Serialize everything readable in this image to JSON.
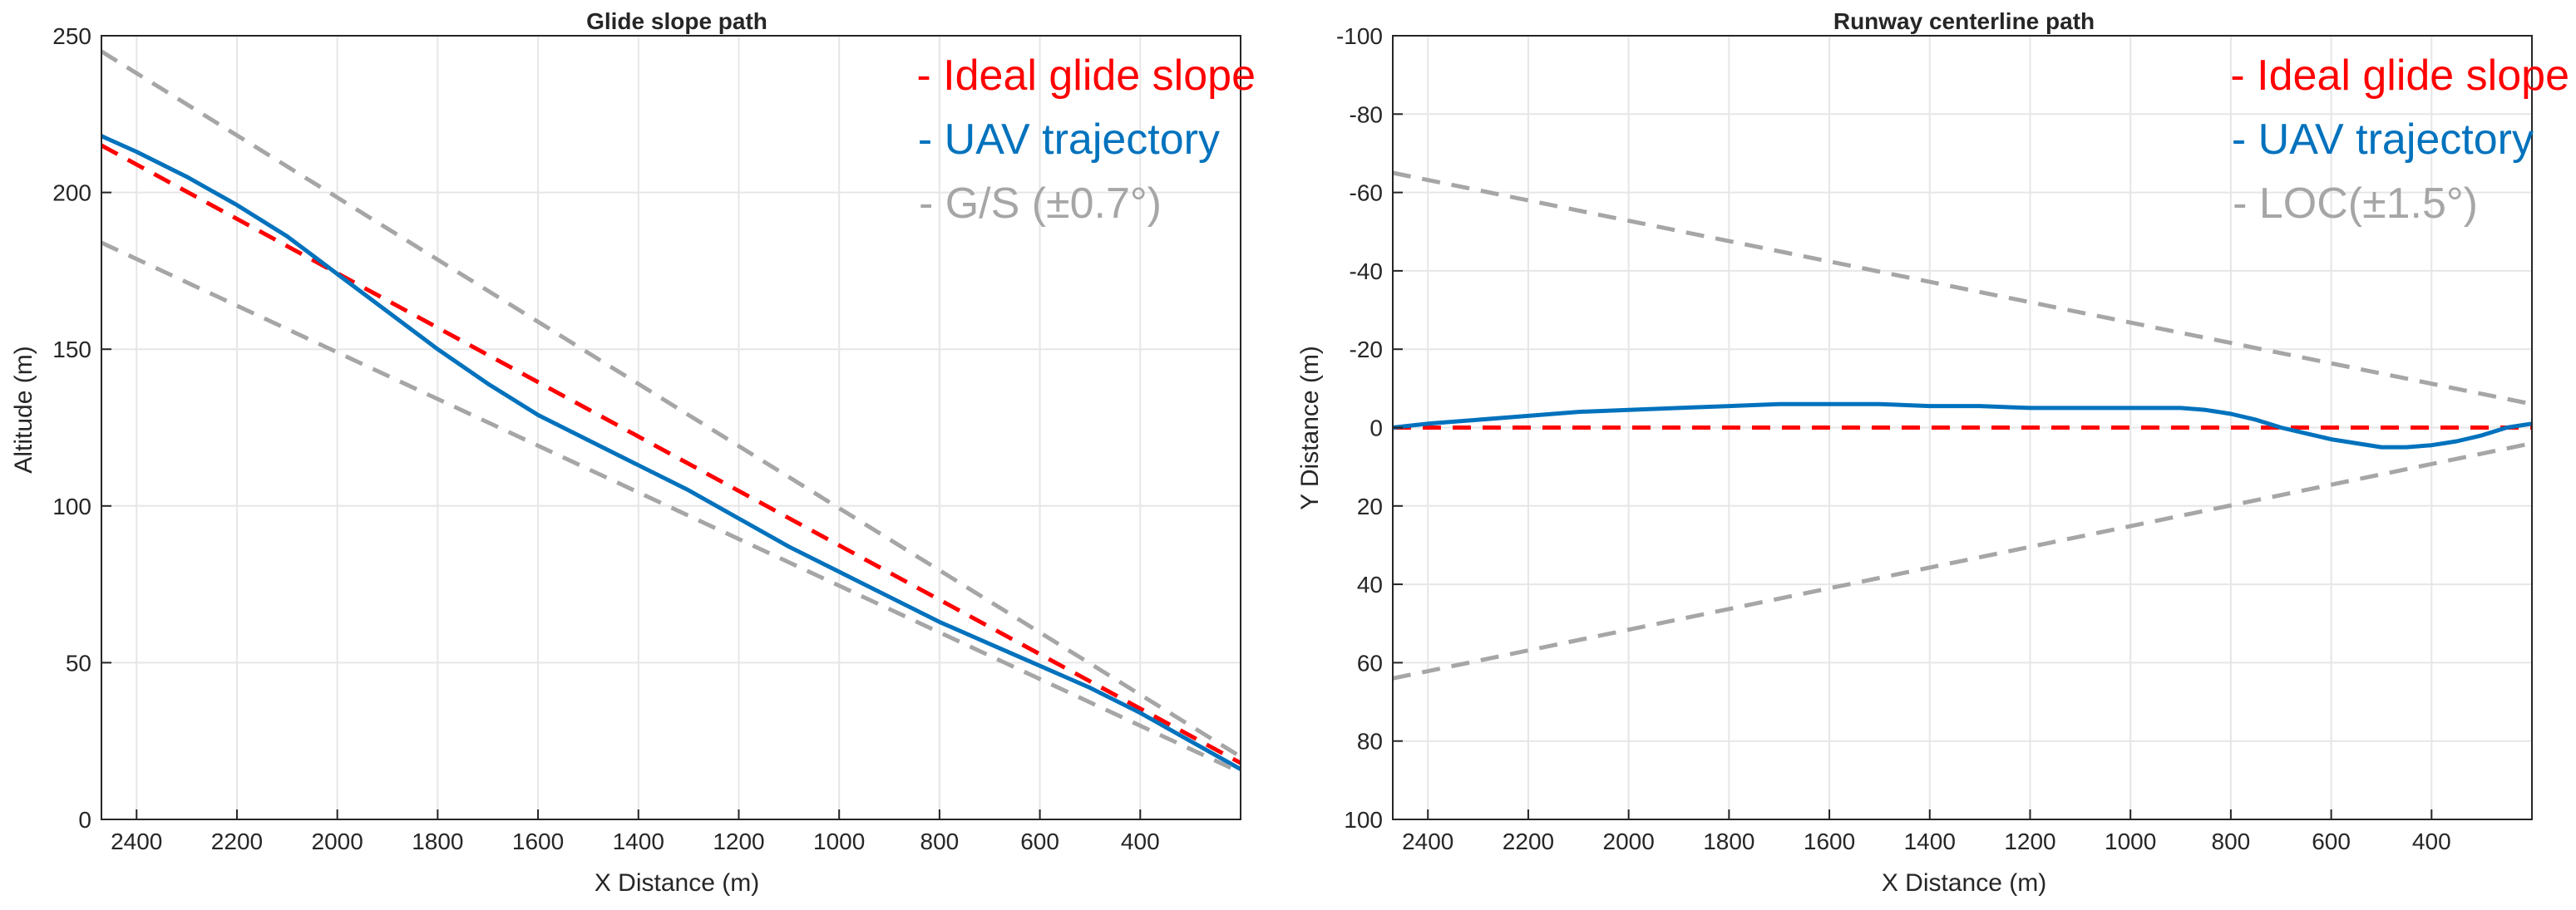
{
  "chart_data": [
    {
      "type": "line",
      "title": "Glide slope path",
      "xlabel": "X Distance (m)",
      "ylabel": "Altitude (m)",
      "xlim": [
        2470,
        200
      ],
      "ylim": [
        0,
        250
      ],
      "x_ticks": [
        2400,
        2200,
        2000,
        1800,
        1600,
        1400,
        1200,
        1000,
        800,
        600,
        400
      ],
      "y_ticks": [
        0,
        50,
        100,
        150,
        200,
        250
      ],
      "y_reversed": false,
      "grid": true,
      "legend_position": "top-right",
      "series": [
        {
          "name": "Ideal glide slope",
          "legend_label": "- Ideal glide slope",
          "color": "#ff0000",
          "style": "dashed",
          "x": [
            2470,
            200
          ],
          "y": [
            215,
            18
          ]
        },
        {
          "name": "UAV trajectory",
          "legend_label": "- UAV trajectory",
          "color": "#0072bd",
          "style": "solid",
          "x": [
            2470,
            2400,
            2300,
            2200,
            2100,
            2000,
            1900,
            1800,
            1700,
            1600,
            1500,
            1400,
            1300,
            1200,
            1100,
            1000,
            900,
            800,
            700,
            600,
            500,
            400,
            300,
            200
          ],
          "y": [
            218,
            213,
            205,
            196,
            186,
            174,
            162,
            150,
            139,
            129,
            121,
            113,
            105,
            96,
            87,
            79,
            71,
            63,
            56,
            49,
            42,
            34,
            25,
            16
          ]
        },
        {
          "name": "G/S (±0.7°) upper",
          "legend_label": "- G/S (±0.7°)",
          "color": "#a6a6a6",
          "style": "dashed",
          "x": [
            2470,
            200
          ],
          "y": [
            245,
            20
          ]
        },
        {
          "name": "G/S (±0.7°) lower",
          "color": "#a6a6a6",
          "style": "dashed",
          "x": [
            2470,
            200
          ],
          "y": [
            184,
            15
          ]
        }
      ]
    },
    {
      "type": "line",
      "title": "Runway centerline path",
      "xlabel": "X Distance (m)",
      "ylabel": "Y Distance (m)",
      "xlim": [
        2470,
        200
      ],
      "ylim": [
        -100,
        100
      ],
      "x_ticks": [
        2400,
        2200,
        2000,
        1800,
        1600,
        1400,
        1200,
        1000,
        800,
        600,
        400
      ],
      "y_ticks": [
        -100,
        -80,
        -60,
        -40,
        -20,
        0,
        20,
        40,
        60,
        80,
        100
      ],
      "y_reversed": true,
      "grid": true,
      "legend_position": "top-right",
      "series": [
        {
          "name": "Ideal glide slope",
          "legend_label": "- Ideal glide slope",
          "color": "#ff0000",
          "style": "dashed",
          "x": [
            2470,
            200
          ],
          "y": [
            0,
            0
          ]
        },
        {
          "name": "UAV trajectory",
          "legend_label": "- UAV trajectory",
          "color": "#0072bd",
          "style": "solid",
          "x": [
            2470,
            2400,
            2300,
            2200,
            2100,
            2000,
            1900,
            1800,
            1700,
            1600,
            1500,
            1400,
            1300,
            1200,
            1100,
            1000,
            900,
            850,
            800,
            750,
            700,
            650,
            600,
            550,
            500,
            450,
            400,
            350,
            300,
            250,
            200
          ],
          "y": [
            0,
            -1,
            -2,
            -3,
            -4,
            -4.5,
            -5,
            -5.5,
            -6,
            -6,
            -6,
            -5.5,
            -5.5,
            -5,
            -5,
            -5,
            -5,
            -4.5,
            -3.5,
            -2,
            0,
            1.5,
            3,
            4,
            5,
            5,
            4.5,
            3.5,
            2,
            0,
            -1
          ]
        },
        {
          "name": "LOC(±1.5°) upper",
          "legend_label": "- LOC(±1.5°)",
          "color": "#a6a6a6",
          "style": "dashed",
          "x": [
            2470,
            200
          ],
          "y": [
            -65,
            -6
          ]
        },
        {
          "name": "LOC(±1.5°) lower",
          "color": "#a6a6a6",
          "style": "dashed",
          "x": [
            2470,
            200
          ],
          "y": [
            64,
            4
          ]
        }
      ]
    }
  ]
}
